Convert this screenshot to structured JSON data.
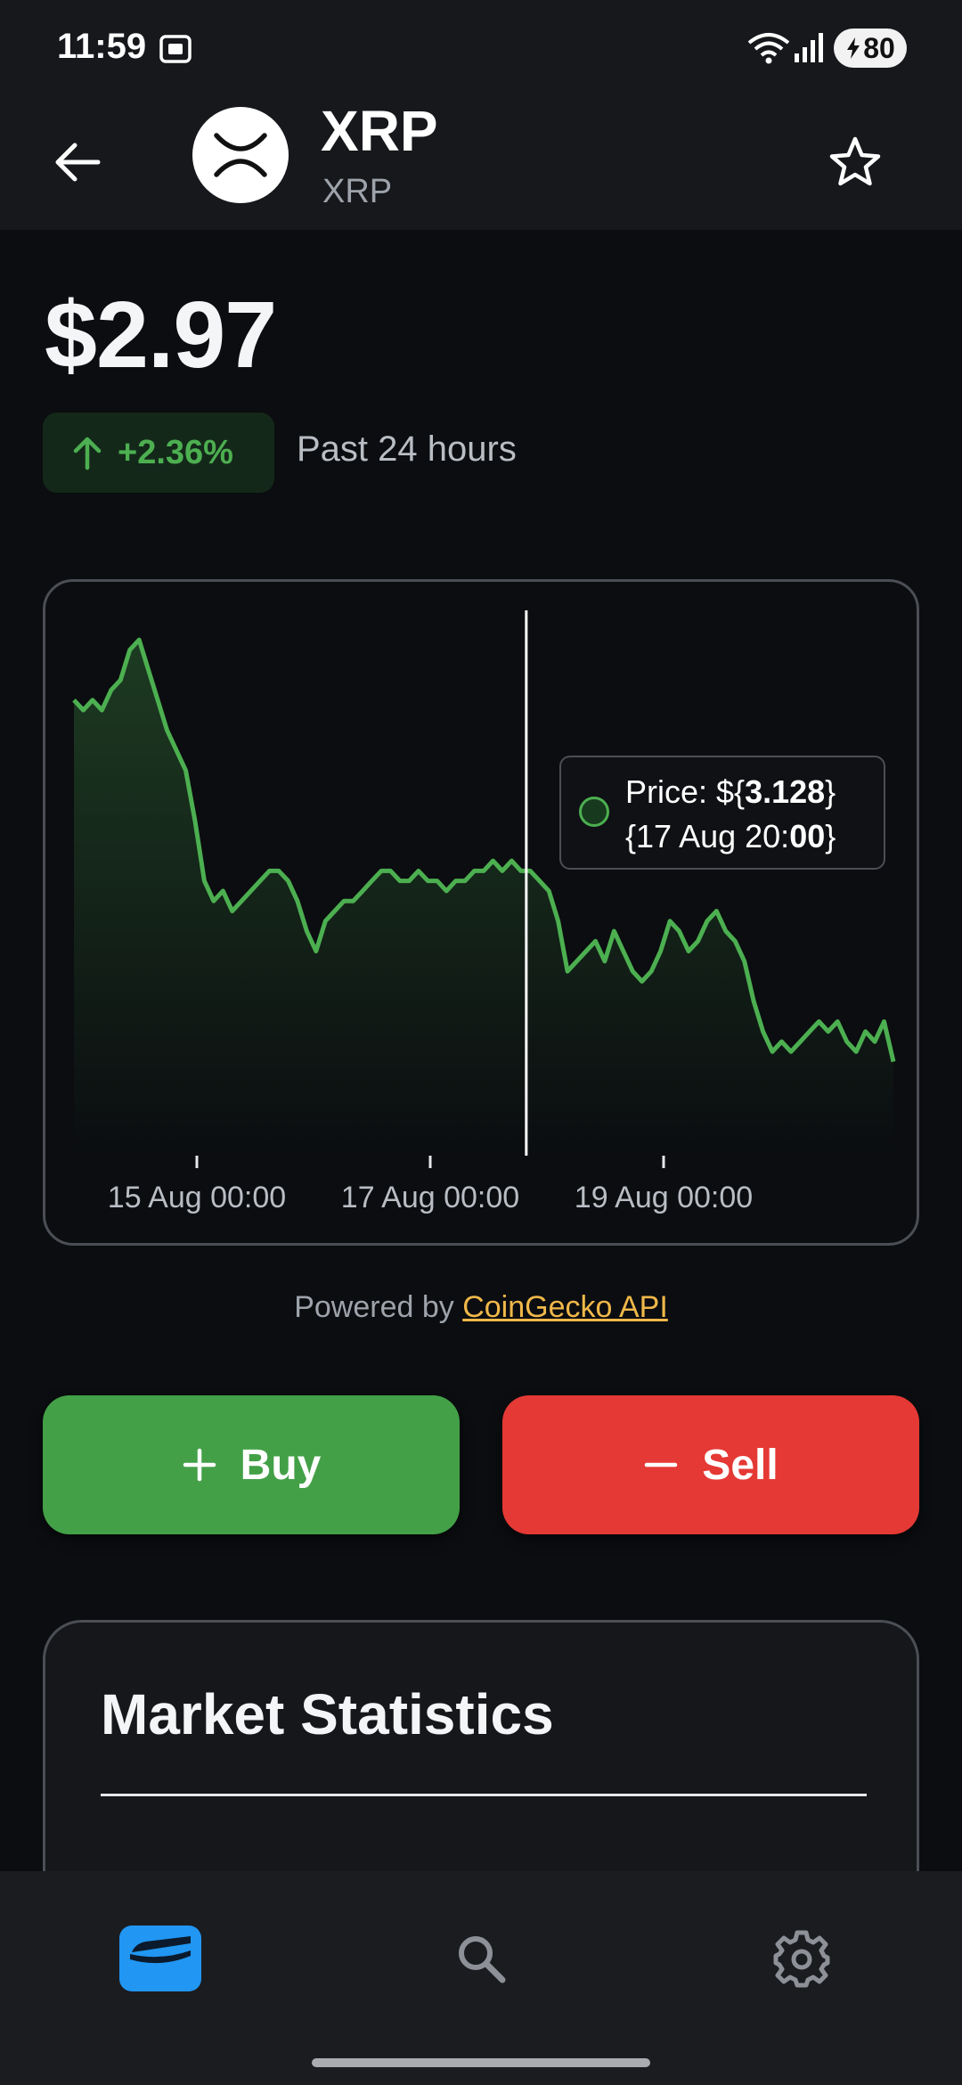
{
  "status_bar": {
    "time": "11:59",
    "battery_level": "80",
    "icons": [
      "screenshot-icon",
      "wifi-icon",
      "signal-icon",
      "battery-bolt-icon"
    ]
  },
  "header": {
    "coin_name": "XRP",
    "coin_symbol": "XRP",
    "icons": [
      "back-arrow-icon",
      "xrp-logo-icon",
      "star-outline-icon"
    ]
  },
  "price": {
    "value": "$2.97",
    "change": "+2.36%",
    "change_period": "Past 24 hours",
    "change_color": "#4caf50"
  },
  "chart": {
    "tooltip_price_label": "Price: ${",
    "tooltip_price_value": "3.128",
    "tooltip_price_close": "}",
    "tooltip_date_prefix": "{17 Aug 20:",
    "tooltip_date_bold": "00",
    "tooltip_date_close": "}"
  },
  "chart_data": {
    "type": "area",
    "x_tick_labels": [
      "15 Aug 00:00",
      "17 Aug 00:00",
      "19 Aug 00:00"
    ],
    "line_color": "#4caf50",
    "grid": false,
    "legend": "none",
    "y_range_estimated": [
      2.8,
      3.35
    ],
    "series": [
      {
        "values": [
          3.25,
          3.24,
          3.25,
          3.24,
          3.26,
          3.27,
          3.3,
          3.31,
          3.28,
          3.25,
          3.22,
          3.2,
          3.18,
          3.13,
          3.07,
          3.05,
          3.06,
          3.04,
          3.05,
          3.06,
          3.07,
          3.08,
          3.08,
          3.07,
          3.05,
          3.02,
          3.0,
          3.03,
          3.04,
          3.05,
          3.05,
          3.06,
          3.07,
          3.08,
          3.08,
          3.07,
          3.07,
          3.08,
          3.07,
          3.07,
          3.06,
          3.07,
          3.07,
          3.08,
          3.08,
          3.09,
          3.08,
          3.09,
          3.08,
          3.08,
          3.07,
          3.06,
          3.03,
          2.98,
          2.99,
          3.0,
          3.01,
          2.99,
          3.02,
          3.0,
          2.98,
          2.97,
          2.98,
          3.0,
          3.03,
          3.02,
          3.0,
          3.01,
          3.03,
          3.04,
          3.02,
          3.01,
          2.99,
          2.95,
          2.92,
          2.9,
          2.91,
          2.9,
          2.91,
          2.92,
          2.93,
          2.92,
          2.93,
          2.91,
          2.9,
          2.92,
          2.91,
          2.93,
          2.89
        ]
      }
    ],
    "tooltip": {
      "x": "17 Aug 20:00",
      "y": 3.128
    }
  },
  "footer_note": {
    "prefix": "Powered by ",
    "link": "CoinGecko API",
    "link_color": "#f0b84a"
  },
  "actions": {
    "buy_label": "Buy",
    "sell_label": "Sell",
    "buy_color": "#43a047",
    "sell_color": "#e53935"
  },
  "market_statistics": {
    "title": "Market Statistics"
  },
  "bottom_nav": {
    "items": [
      {
        "name": "wallet",
        "icon": "wallet-icon",
        "active": true,
        "color": "#2196f3"
      },
      {
        "name": "search",
        "icon": "search-icon",
        "active": false
      },
      {
        "name": "settings",
        "icon": "gear-icon",
        "active": false
      }
    ]
  }
}
